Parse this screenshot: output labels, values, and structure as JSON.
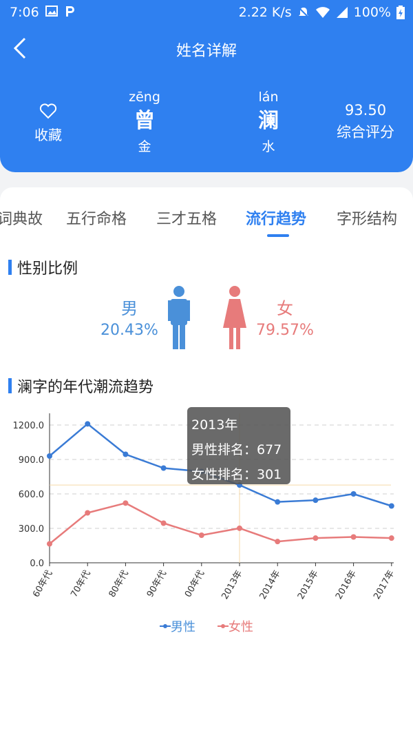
{
  "status_bar": {
    "time": "7:06",
    "network_speed": "2.22 K/s",
    "battery": "100%"
  },
  "header": {
    "title": "姓名详解",
    "favorite_label": "收藏",
    "chars": [
      {
        "pinyin": "zēng",
        "hanzi": "曾",
        "element": "金"
      },
      {
        "pinyin": "lán",
        "hanzi": "澜",
        "element": "水"
      }
    ],
    "score_value": "93.50",
    "score_label": "综合评分"
  },
  "tabs": [
    {
      "label": "词典故"
    },
    {
      "label": "五行命格"
    },
    {
      "label": "三才五格"
    },
    {
      "label": "流行趋势",
      "active": true
    },
    {
      "label": "字形结构"
    }
  ],
  "gender_section": {
    "title": "性别比例",
    "male_label": "男",
    "male_pct": "20.43%",
    "female_label": "女",
    "female_pct": "79.57%",
    "male_color": "#4a90d9",
    "female_color": "#e77b7b"
  },
  "trend_section": {
    "title": "澜字的年代潮流趋势"
  },
  "tooltip": {
    "year": "2013年",
    "male_line": "男性排名：677",
    "female_line": "女性排名：301"
  },
  "chart_data": {
    "type": "line",
    "categories": [
      "60年代",
      "70年代",
      "80年代",
      "90年代",
      "00年代",
      "2013年",
      "2014年",
      "2015年",
      "2016年",
      "2017年"
    ],
    "series": [
      {
        "name": "男性",
        "color": "#3a7bd5",
        "values": [
          930,
          1210,
          945,
          825,
          795,
          677,
          530,
          545,
          600,
          495
        ]
      },
      {
        "name": "女性",
        "color": "#e77b7b",
        "values": [
          165,
          435,
          520,
          345,
          240,
          301,
          185,
          215,
          225,
          215
        ]
      }
    ],
    "y_ticks": [
      "0.0",
      "300.0",
      "600.0",
      "900.0",
      "1200.0"
    ],
    "ylim": [
      0,
      1200
    ],
    "grid": true,
    "highlight_index": 5,
    "legend_position": "bottom"
  },
  "colors": {
    "primary": "#2f80f0",
    "crosshair": "#f5d9a8"
  }
}
